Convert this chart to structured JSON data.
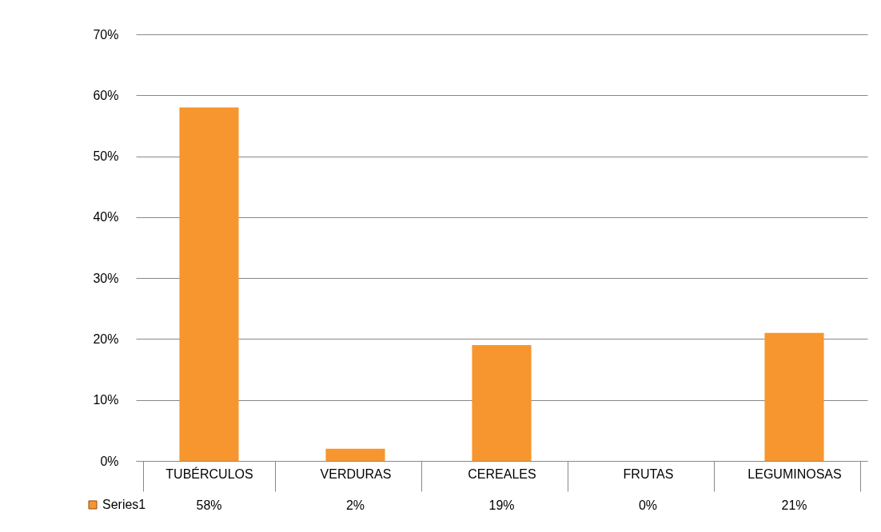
{
  "chart_data": {
    "type": "bar",
    "categories": [
      "TUBÉRCULOS",
      "VERDURAS",
      "CEREALES",
      "FRUTAS",
      "LEGUMINOSAS"
    ],
    "series": [
      {
        "name": "Series1",
        "color": "#f7962e",
        "values": [
          58,
          2,
          19,
          0,
          21
        ],
        "value_labels": [
          "58%",
          "2%",
          "19%",
          "0%",
          "21%"
        ]
      }
    ],
    "ylim": [
      0,
      70
    ],
    "yticks": [
      {
        "value": 0,
        "label": "0%"
      },
      {
        "value": 10,
        "label": "10%"
      },
      {
        "value": 20,
        "label": "20%"
      },
      {
        "value": 30,
        "label": "30%"
      },
      {
        "value": 40,
        "label": "40%"
      },
      {
        "value": 50,
        "label": "50%"
      },
      {
        "value": 60,
        "label": "60%"
      },
      {
        "value": 70,
        "label": "70%"
      }
    ],
    "grid": "y",
    "legend": "bottom left"
  }
}
